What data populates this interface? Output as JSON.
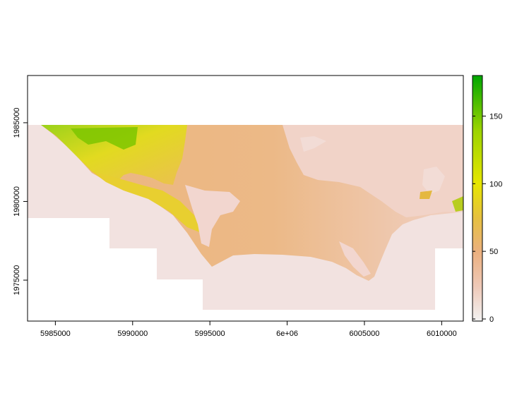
{
  "chart_data": {
    "type": "heatmap",
    "title": "",
    "xlabel": "",
    "ylabel": "",
    "x_ticks": [
      {
        "value": 5985000,
        "label": "5985000"
      },
      {
        "value": 5990000,
        "label": "5990000"
      },
      {
        "value": 5995000,
        "label": "5995000"
      },
      {
        "value": 6000000,
        "label": "6e+06"
      },
      {
        "value": 6005000,
        "label": "6005000"
      },
      {
        "value": 6010000,
        "label": "6010000"
      }
    ],
    "y_ticks": [
      {
        "value": 1975000,
        "label": "1975000"
      },
      {
        "value": 1980000,
        "label": "1980000"
      },
      {
        "value": 1985000,
        "label": "1985000"
      }
    ],
    "xlim": [
      5983200,
      6011400
    ],
    "ylim": [
      1972400,
      1988000
    ],
    "legend": {
      "position": "right",
      "range": [
        0,
        180
      ],
      "ticks": [
        {
          "value": 0,
          "label": "0"
        },
        {
          "value": 50,
          "label": "50"
        },
        {
          "value": 100,
          "label": "100"
        },
        {
          "value": 150,
          "label": "150"
        }
      ],
      "colors": [
        "#f2f2f2",
        "#eec9b8",
        "#ebb07f",
        "#e6c040",
        "#e6e600",
        "#9ad300",
        "#00a600"
      ]
    },
    "colors": {
      "sea_fill": "#f2e2e0",
      "low_land": "#f1cfc4",
      "mid_land": "#ebb683",
      "high_land": "#e4d52a",
      "peak_land": "#6ec400"
    }
  }
}
